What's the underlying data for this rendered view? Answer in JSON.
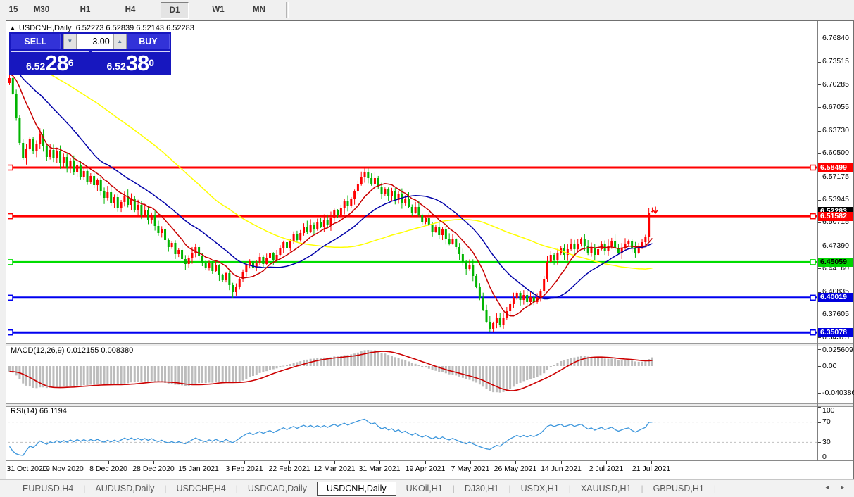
{
  "toolbar": {
    "timeframes": [
      {
        "label": "15",
        "active": false
      },
      {
        "label": "M30",
        "active": false
      },
      {
        "label": "H1",
        "active": false
      },
      {
        "label": "H4",
        "active": false
      },
      {
        "label": "D1",
        "active": true
      },
      {
        "label": "W1",
        "active": false
      },
      {
        "label": "MN",
        "active": false
      }
    ]
  },
  "chart_header": {
    "collapse_icon": "▲",
    "title": "USDCNH,Daily",
    "ohlc_text": "6.52273 6.52839 6.52143 6.52283"
  },
  "trade_panel": {
    "sell_label": "SELL",
    "buy_label": "BUY",
    "volume_value": "3.00",
    "spinner_down_icon": "▼",
    "spinner_up_icon": "▲",
    "sell_price_prefix": "6.52",
    "sell_price_main": "28",
    "sell_price_sup": "6",
    "buy_price_prefix": "6.52",
    "buy_price_main": "38",
    "buy_price_sup": "0"
  },
  "panes": {
    "macd_label": "MACD(12,26,9) 0.012155 0.008380",
    "rsi_label": "RSI(14) 66.1194"
  },
  "chart_data": {
    "type": "candlestick",
    "symbol": "USDCNH",
    "timeframe": "Daily",
    "current_bar": {
      "open": 6.52273,
      "high": 6.52839,
      "low": 6.52143,
      "close": 6.52283
    },
    "price_axis_range": [
      6.336,
      6.792
    ],
    "price_ticks": [
      "6.76840",
      "6.73515",
      "6.70285",
      "6.67055",
      "6.63730",
      "6.60500",
      "6.57175",
      "6.53945",
      "6.50715",
      "6.47390",
      "6.44160",
      "6.40835",
      "6.37605",
      "6.34375"
    ],
    "price_markers": [
      {
        "label": "6.58499",
        "bg": "#ff0000",
        "fg": "#ffffff",
        "price": 6.58499
      },
      {
        "label": "6.52283",
        "bg": "#000000",
        "fg": "#ffffff",
        "price": 6.52283
      },
      {
        "label": "6.51582",
        "bg": "#ff0000",
        "fg": "#ffffff",
        "price": 6.51582
      },
      {
        "label": "6.45059",
        "bg": "#00d400",
        "fg": "#000000",
        "price": 6.45059
      },
      {
        "label": "6.40019",
        "bg": "#0000dd",
        "fg": "#ffffff",
        "price": 6.40019
      },
      {
        "label": "6.35078",
        "bg": "#0000dd",
        "fg": "#ffffff",
        "price": 6.35078
      }
    ],
    "hlines": [
      {
        "price": 6.58499,
        "color": "#ff0000"
      },
      {
        "price": 6.51582,
        "color": "#ff0000"
      },
      {
        "price": 6.45059,
        "color": "#00dd00"
      },
      {
        "price": 6.40019,
        "color": "#0000f0"
      },
      {
        "price": 6.35078,
        "color": "#0000f0"
      }
    ],
    "dates": [
      "31 Oct 2020",
      "19 Nov 2020",
      "8 Dec 2020",
      "28 Dec 2020",
      "15 Jan 2021",
      "3 Feb 2021",
      "22 Feb 2021",
      "12 Mar 2021",
      "31 Mar 2021",
      "19 Apr 2021",
      "7 May 2021",
      "26 May 2021",
      "14 Jun 2021",
      "2 Jul 2021",
      "21 Jul 2021"
    ],
    "closes": [
      6.712,
      6.69,
      6.655,
      6.62,
      6.598,
      6.612,
      6.625,
      6.608,
      6.618,
      6.632,
      6.615,
      6.6,
      6.61,
      6.598,
      6.608,
      6.592,
      6.6,
      6.585,
      6.595,
      6.578,
      6.588,
      6.572,
      6.58,
      6.565,
      6.573,
      6.56,
      6.568,
      6.552,
      6.542,
      6.55,
      6.535,
      6.543,
      6.528,
      6.536,
      6.545,
      6.532,
      6.54,
      6.525,
      6.532,
      6.518,
      6.525,
      6.51,
      6.518,
      6.502,
      6.492,
      6.498,
      6.482,
      6.472,
      6.478,
      6.462,
      6.468,
      6.455,
      6.448,
      6.456,
      6.464,
      6.472,
      6.46,
      6.45,
      6.442,
      6.45,
      6.438,
      6.446,
      6.432,
      6.425,
      6.435,
      6.418,
      6.408,
      6.416,
      6.426,
      6.436,
      6.446,
      6.452,
      6.442,
      6.45,
      6.458,
      6.448,
      6.456,
      6.463,
      6.453,
      6.461,
      6.47,
      6.479,
      6.471,
      6.481,
      6.49,
      6.482,
      6.492,
      6.501,
      6.494,
      6.504,
      6.497,
      6.507,
      6.501,
      6.511,
      6.504,
      6.514,
      6.524,
      6.517,
      6.527,
      6.537,
      6.53,
      6.541,
      6.551,
      6.561,
      6.571,
      6.578,
      6.57,
      6.562,
      6.57,
      6.557,
      6.547,
      6.555,
      6.544,
      6.551,
      6.539,
      6.547,
      6.534,
      6.541,
      6.529,
      6.521,
      6.529,
      6.517,
      6.507,
      6.514,
      6.504,
      6.494,
      6.501,
      6.489,
      6.497,
      6.484,
      6.477,
      6.483,
      6.472,
      6.462,
      6.451,
      6.441,
      6.447,
      6.431,
      6.416,
      6.4,
      6.383,
      6.366,
      6.356,
      6.364,
      6.371,
      6.361,
      6.371,
      6.381,
      6.391,
      6.399,
      6.407,
      6.397,
      6.404,
      6.394,
      6.401,
      6.394,
      6.401,
      6.409,
      6.427,
      6.451,
      6.461,
      6.454,
      6.464,
      6.471,
      6.461,
      6.469,
      6.477,
      6.469,
      6.477,
      6.484,
      6.474,
      6.464,
      6.471,
      6.461,
      6.469,
      6.477,
      6.467,
      6.474,
      6.481,
      6.471,
      6.464,
      6.471,
      6.477,
      6.481,
      6.471,
      6.464,
      6.471,
      6.479,
      6.487,
      6.521,
      6.52283
    ],
    "special_candles": {
      "0": {
        "high": 6.732
      },
      "66": {
        "low": 6.4
      },
      "105": {
        "high": 6.5849
      },
      "142": {
        "low": 6.352
      },
      "189": {
        "high": 6.528
      },
      "190": {
        "open": 6.52273,
        "high": 6.52839,
        "low": 6.52143,
        "close": 6.52283
      }
    },
    "warmup": {
      "start": 6.785,
      "end": 6.714,
      "count": 60
    },
    "up_color": "#ff0000",
    "down_color": "#00b400",
    "moving_averages": [
      {
        "period": 60,
        "color": "#ffff00"
      },
      {
        "period": 25,
        "color": "#0000a8"
      },
      {
        "period": 10,
        "color": "#c80000"
      }
    ],
    "macd": {
      "fast": 12,
      "slow": 26,
      "signal": 9,
      "main_value": 0.012155,
      "signal_value": 0.00838,
      "hist_color": "#bcbcbc",
      "signal_color": "#cc0000",
      "ticks": [
        {
          "label": "0.025609",
          "value": 0.025609
        },
        {
          "label": "0.00",
          "value": 0
        },
        {
          "label": "-0.040386",
          "value": -0.040386
        }
      ]
    },
    "rsi": {
      "period": 14,
      "current": 66.1194,
      "color": "#3c96dc",
      "levels": [
        70,
        30
      ],
      "ticks": [
        {
          "label": "100",
          "value": 100
        },
        {
          "label": "70",
          "value": 70
        },
        {
          "label": "30",
          "value": 30
        },
        {
          "label": "0",
          "value": 0
        }
      ]
    },
    "last_tick_arrow": {
      "color": "#ff0000",
      "direction": "down"
    }
  },
  "tabs": {
    "items": [
      {
        "label": "EURUSD,H4",
        "active": false
      },
      {
        "label": "AUDUSD,Daily",
        "active": false
      },
      {
        "label": "USDCHF,H4",
        "active": false
      },
      {
        "label": "USDCAD,Daily",
        "active": false
      },
      {
        "label": "USDCNH,Daily",
        "active": true
      },
      {
        "label": "UKOil,H1",
        "active": false
      },
      {
        "label": "DJ30,H1",
        "active": false
      },
      {
        "label": "USDX,H1",
        "active": false
      },
      {
        "label": "XAUUSD,H1",
        "active": false
      },
      {
        "label": "GBPUSD,H1",
        "active": false
      }
    ],
    "left_arrow": "◂",
    "right_arrow": "▸"
  }
}
